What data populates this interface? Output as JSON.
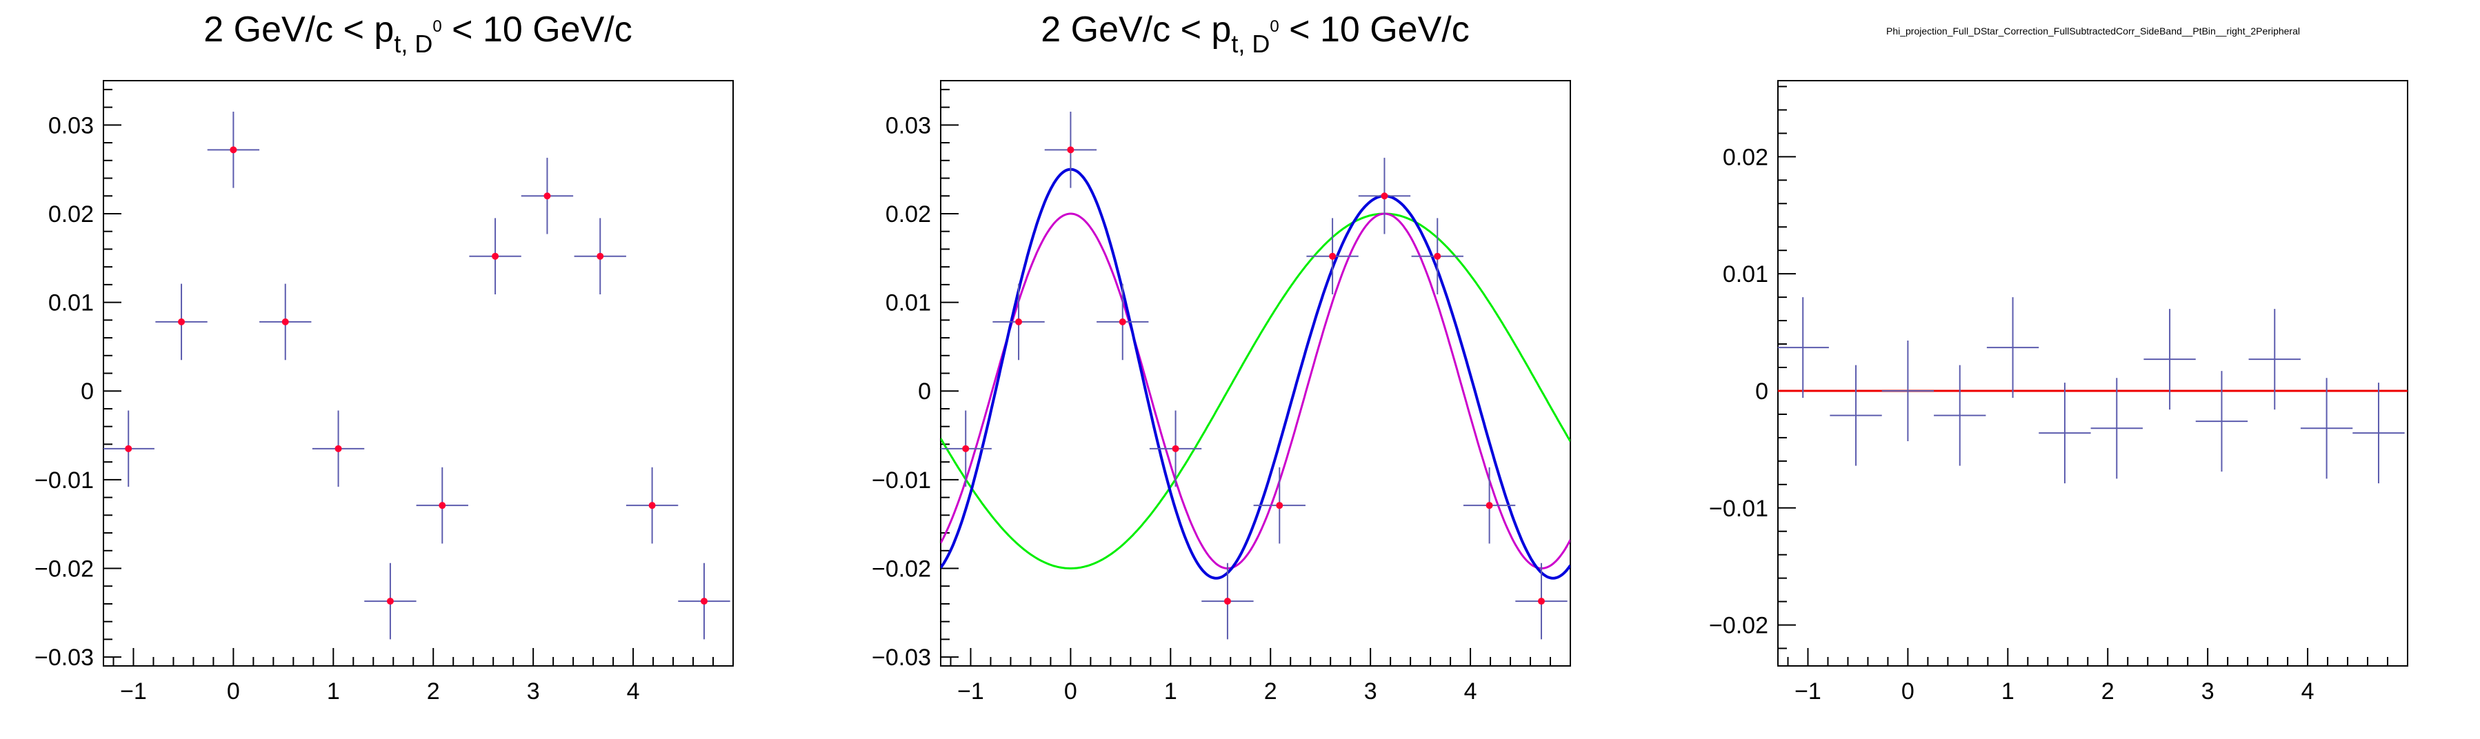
{
  "colors": {
    "errorbar": "#5c5cae",
    "marker": "#ff0033",
    "total_fit": "#0000dd",
    "cos2_component": "#cc00cc",
    "cos1_component": "#00ee00",
    "zero_line": "#ee0000"
  },
  "chart_data": [
    {
      "type": "scatter",
      "title_parts": {
        "pre": "2 GeV/c < p",
        "sub": "t, D",
        "sup": "0",
        "post": " < 10 GeV/c"
      },
      "xlim": [
        -1.3,
        5.0
      ],
      "ylim": [
        -0.031,
        0.035
      ],
      "xticks": [
        -1,
        0,
        1,
        2,
        3,
        4
      ],
      "yticks": [
        -0.03,
        -0.02,
        -0.01,
        0,
        0.01,
        0.02,
        0.03
      ],
      "ytick_labels": [
        "−0.03",
        "−0.02",
        "−0.01",
        "0",
        "0.01",
        "0.02",
        "0.03"
      ],
      "xtick_labels": [
        "−1",
        "0",
        "1",
        "2",
        "3",
        "4"
      ],
      "bin_half_width": 0.26,
      "series": [
        {
          "markers": true,
          "x": [
            -1.05,
            -0.52,
            0.0,
            0.52,
            1.05,
            1.57,
            2.09,
            2.62,
            3.14,
            3.67,
            4.19,
            4.71
          ],
          "y": [
            -0.0065,
            0.0078,
            0.0272,
            0.0078,
            -0.0065,
            -0.0237,
            -0.0129,
            0.0152,
            0.022,
            0.0152,
            -0.0129,
            -0.0237
          ],
          "yerr": [
            0.0043,
            0.0043,
            0.0043,
            0.0043,
            0.0043,
            0.0043,
            0.0043,
            0.0043,
            0.0043,
            0.0043,
            0.0043,
            0.0043
          ]
        }
      ]
    },
    {
      "type": "scatter",
      "title_parts": {
        "pre": "2 GeV/c < p",
        "sub": "t, D",
        "sup": "0",
        "post": " < 10 GeV/c"
      },
      "xlim": [
        -1.3,
        5.0
      ],
      "ylim": [
        -0.031,
        0.035
      ],
      "xticks": [
        -1,
        0,
        1,
        2,
        3,
        4
      ],
      "yticks": [
        -0.03,
        -0.02,
        -0.01,
        0,
        0.01,
        0.02,
        0.03
      ],
      "ytick_labels": [
        "−0.03",
        "−0.02",
        "−0.01",
        "0",
        "0.01",
        "0.02",
        "0.03"
      ],
      "xtick_labels": [
        "−1",
        "0",
        "1",
        "2",
        "3",
        "4"
      ],
      "bin_half_width": 0.26,
      "series": [
        {
          "markers": true,
          "x": [
            -1.05,
            -0.52,
            0.0,
            0.52,
            1.05,
            1.57,
            2.09,
            2.62,
            3.14,
            3.67,
            4.19,
            4.71
          ],
          "y": [
            -0.0065,
            0.0078,
            0.0272,
            0.0078,
            -0.0065,
            -0.0237,
            -0.0129,
            0.0152,
            0.022,
            0.0152,
            -0.0129,
            -0.0237
          ],
          "yerr": [
            0.0043,
            0.0043,
            0.0043,
            0.0043,
            0.0043,
            0.0043,
            0.0043,
            0.0043,
            0.0043,
            0.0043,
            0.0043,
            0.0043
          ]
        }
      ],
      "curves": [
        {
          "kind": "fourier",
          "color_key": "cos1_component",
          "width": 3,
          "c0": 0,
          "a1": -0.02,
          "a2": 0,
          "a3": 0
        },
        {
          "kind": "fourier",
          "color_key": "cos2_component",
          "width": 3,
          "c0": 0,
          "a1": 0,
          "a2": 0.02,
          "a3": 0
        },
        {
          "kind": "fourier",
          "color_key": "total_fit",
          "width": 4,
          "c0": 0.0015,
          "a1": -0.0015,
          "a2": 0.022,
          "a3": 0.003
        }
      ]
    },
    {
      "type": "scatter",
      "title": "Phi_projection_Full_DStar_Correction_FullSubtractedCorr_SideBand__PtBin__right_2Peripheral",
      "xlim": [
        -1.3,
        5.0
      ],
      "ylim": [
        -0.0235,
        0.0265
      ],
      "xticks": [
        -1,
        0,
        1,
        2,
        3,
        4
      ],
      "yticks": [
        -0.02,
        -0.01,
        0,
        0.01,
        0.02
      ],
      "ytick_labels": [
        "−0.02",
        "−0.01",
        "0",
        "0.01",
        "0.02"
      ],
      "xtick_labels": [
        "−1",
        "0",
        "1",
        "2",
        "3",
        "4"
      ],
      "bin_half_width": 0.26,
      "series": [
        {
          "markers": false,
          "x": [
            -1.05,
            -0.52,
            0.0,
            0.52,
            1.05,
            1.57,
            2.09,
            2.62,
            3.14,
            3.67,
            4.19,
            4.71
          ],
          "y": [
            0.0037,
            -0.0021,
            0.0,
            -0.0021,
            0.0037,
            -0.0036,
            -0.0032,
            0.0027,
            -0.0026,
            0.0027,
            -0.0032,
            -0.0036
          ],
          "yerr": [
            0.0043,
            0.0043,
            0.0043,
            0.0043,
            0.0043,
            0.0043,
            0.0043,
            0.0043,
            0.0043,
            0.0043,
            0.0043,
            0.0043
          ]
        }
      ],
      "hline": {
        "y": 0,
        "color_key": "zero_line"
      }
    }
  ]
}
